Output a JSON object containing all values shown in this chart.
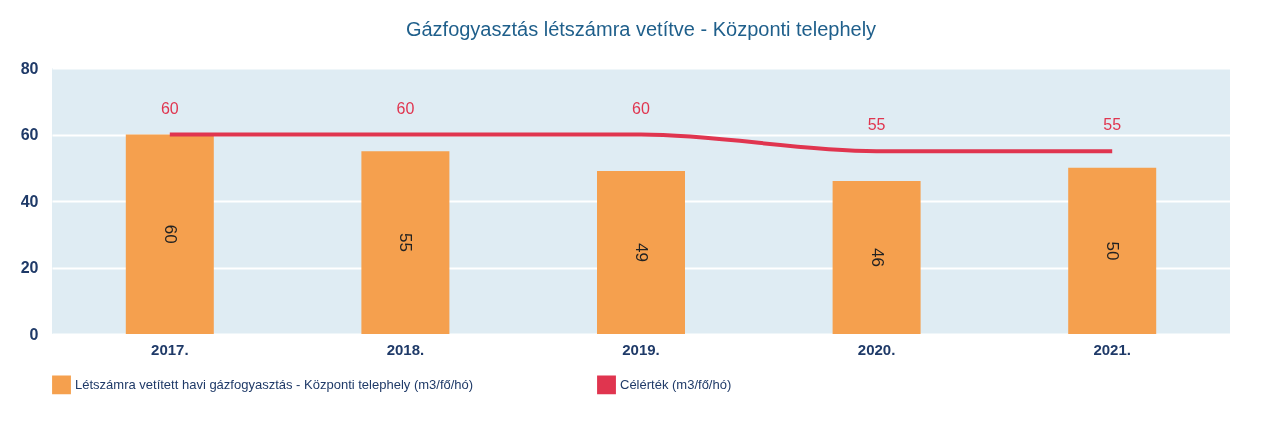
{
  "chart_data": {
    "type": "bar",
    "title": "Gázfogyasztás létszámra vetítve - Központi telephely",
    "categories": [
      "2017.",
      "2018.",
      "2019.",
      "2020.",
      "2021."
    ],
    "series": [
      {
        "name": "Létszámra vetített havi gázfogyasztás - Központi telephely (m3/fő/hó)",
        "color": "#f5a04e",
        "values": [
          60,
          55,
          49,
          46,
          50
        ]
      },
      {
        "name": "Célérték (m3/fő/hó)",
        "type": "line",
        "color": "#e0354f",
        "values": [
          60,
          60,
          60,
          55,
          55
        ]
      }
    ],
    "ylim": [
      0,
      80
    ],
    "yticks": [
      0,
      20,
      40,
      60,
      80
    ],
    "grid": "y",
    "legend": "bottom",
    "data_labels": true,
    "marker": "none",
    "line_style": "solid"
  }
}
